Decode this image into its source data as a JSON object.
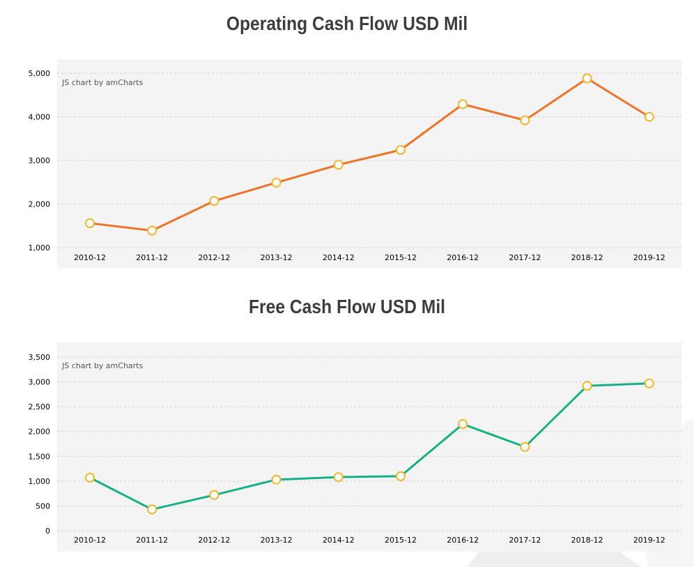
{
  "chart_data": [
    {
      "type": "line",
      "title": "Operating Cash Flow USD Mil",
      "credit": "JS chart by amCharts",
      "categories": [
        "2010-12",
        "2011-12",
        "2012-12",
        "2013-12",
        "2014-12",
        "2015-12",
        "2016-12",
        "2017-12",
        "2018-12",
        "2019-12"
      ],
      "values": [
        1560,
        1390,
        2070,
        2490,
        2900,
        3240,
        4290,
        3920,
        4880,
        4000
      ],
      "ylim": [
        1000,
        5000
      ],
      "yticks": [
        1000,
        2000,
        3000,
        4000,
        5000
      ],
      "ytick_labels": [
        "1,000",
        "2,000",
        "3,000",
        "4,000",
        "5,000"
      ],
      "grid": true,
      "color": "#ee7328",
      "marker_color": "#f0b62b"
    },
    {
      "type": "line",
      "title": "Free Cash Flow USD Mil",
      "credit": "JS chart by amCharts",
      "categories": [
        "2010-12",
        "2011-12",
        "2012-12",
        "2013-12",
        "2014-12",
        "2015-12",
        "2016-12",
        "2017-12",
        "2018-12",
        "2019-12"
      ],
      "values": [
        1070,
        430,
        720,
        1030,
        1080,
        1100,
        2150,
        1690,
        2920,
        2970
      ],
      "ylim": [
        0,
        3500
      ],
      "yticks": [
        0,
        500,
        1000,
        1500,
        2000,
        2500,
        3000,
        3500
      ],
      "ytick_labels": [
        "0",
        "500",
        "1,000",
        "1,500",
        "2,000",
        "2,500",
        "3,000",
        "3,500"
      ],
      "grid": true,
      "color": "#16b085",
      "marker_color": "#f0b62b"
    }
  ]
}
